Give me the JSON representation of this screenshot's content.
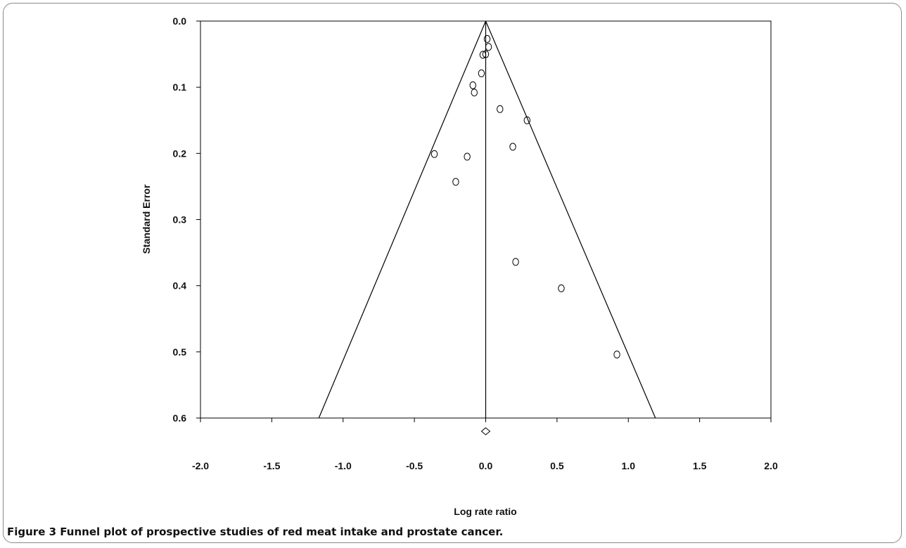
{
  "figure": {
    "caption_label": "Figure 3",
    "caption_text": "Funnel plot of prospective studies of red meat intake and prostate cancer."
  },
  "chart_data": {
    "type": "scatter",
    "xlabel": "Log rate ratio",
    "ylabel": "Standard Error",
    "xlim": [
      -2.0,
      2.0
    ],
    "ylim": [
      0.0,
      0.6
    ],
    "y_inverted": true,
    "x_ticks": [
      "-2.0",
      "-1.5",
      "-1.0",
      "-0.5",
      "0.0",
      "0.5",
      "1.0",
      "1.5",
      "2.0"
    ],
    "y_ticks": [
      "0.0",
      "0.1",
      "0.2",
      "0.3",
      "0.4",
      "0.5",
      "0.6"
    ],
    "grid": false,
    "pooled_estimate": 0.0,
    "funnel_limits": {
      "apex": [
        0.0,
        0.0
      ],
      "base_left": [
        -1.17,
        0.6
      ],
      "base_right": [
        1.19,
        0.6
      ]
    },
    "summary_diamond": [
      0.0,
      0.62
    ],
    "points": [
      {
        "x": 0.01,
        "y": 0.027
      },
      {
        "x": 0.02,
        "y": 0.039
      },
      {
        "x": -0.02,
        "y": 0.051
      },
      {
        "x": 0.0,
        "y": 0.05
      },
      {
        "x": -0.03,
        "y": 0.079
      },
      {
        "x": -0.09,
        "y": 0.097
      },
      {
        "x": -0.08,
        "y": 0.108
      },
      {
        "x": 0.1,
        "y": 0.133
      },
      {
        "x": 0.29,
        "y": 0.15
      },
      {
        "x": 0.19,
        "y": 0.19
      },
      {
        "x": -0.36,
        "y": 0.201
      },
      {
        "x": -0.13,
        "y": 0.205
      },
      {
        "x": -0.21,
        "y": 0.243
      },
      {
        "x": 0.21,
        "y": 0.364
      },
      {
        "x": 0.53,
        "y": 0.404
      },
      {
        "x": 0.92,
        "y": 0.504
      }
    ]
  }
}
